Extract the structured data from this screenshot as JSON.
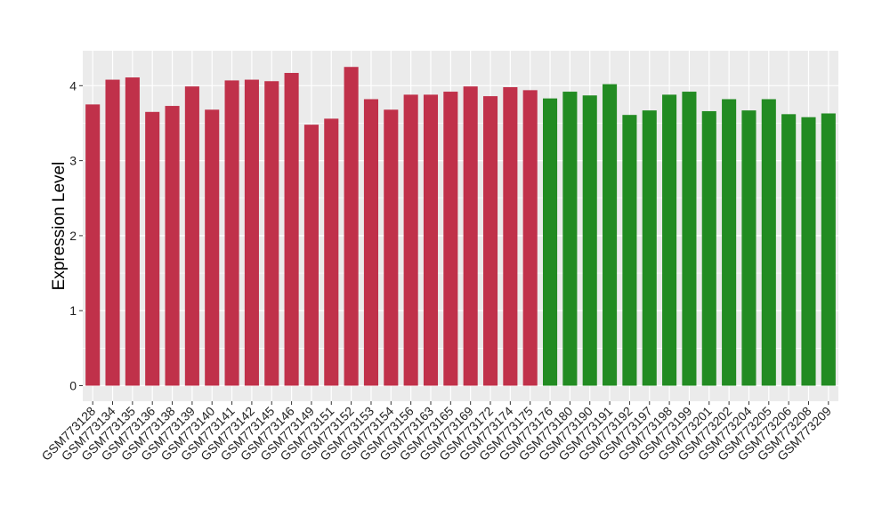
{
  "chart_data": {
    "type": "bar",
    "title": "",
    "xlabel": "",
    "ylabel": "Expression Level",
    "ylim": [
      -0.2,
      4.5
    ],
    "yticks": [
      0,
      1,
      2,
      3,
      4
    ],
    "grid": true,
    "legend": "none",
    "panel_color": "#ebebeb",
    "grid_color": "#ffffff",
    "categories": [
      "GSM773128",
      "GSM773134",
      "GSM773135",
      "GSM773136",
      "GSM773138",
      "GSM773139",
      "GSM773140",
      "GSM773141",
      "GSM773142",
      "GSM773145",
      "GSM773146",
      "GSM773149",
      "GSM773151",
      "GSM773152",
      "GSM773153",
      "GSM773154",
      "GSM773156",
      "GSM773163",
      "GSM773165",
      "GSM773169",
      "GSM773172",
      "GSM773174",
      "GSM773175",
      "GSM773176",
      "GSM773180",
      "GSM773190",
      "GSM773191",
      "GSM773192",
      "GSM773197",
      "GSM773198",
      "GSM773199",
      "GSM773201",
      "GSM773202",
      "GSM773204",
      "GSM773205",
      "GSM773206",
      "GSM773208",
      "GSM773209"
    ],
    "values": [
      3.75,
      4.08,
      4.11,
      3.65,
      3.73,
      3.99,
      3.68,
      4.07,
      4.08,
      4.06,
      4.17,
      3.48,
      3.56,
      4.25,
      3.82,
      3.68,
      3.88,
      3.88,
      3.92,
      3.99,
      3.86,
      3.98,
      3.94,
      3.83,
      3.92,
      3.87,
      4.02,
      3.61,
      3.67,
      3.88,
      3.92,
      3.66,
      3.82,
      3.67,
      3.82,
      3.62,
      3.58,
      3.63
    ],
    "bar_colors": [
      "#c0314a",
      "#c0314a",
      "#c0314a",
      "#c0314a",
      "#c0314a",
      "#c0314a",
      "#c0314a",
      "#c0314a",
      "#c0314a",
      "#c0314a",
      "#c0314a",
      "#c0314a",
      "#c0314a",
      "#c0314a",
      "#c0314a",
      "#c0314a",
      "#c0314a",
      "#c0314a",
      "#c0314a",
      "#c0314a",
      "#c0314a",
      "#c0314a",
      "#c0314a",
      "#228b22",
      "#228b22",
      "#228b22",
      "#228b22",
      "#228b22",
      "#228b22",
      "#228b22",
      "#228b22",
      "#228b22",
      "#228b22",
      "#228b22",
      "#228b22",
      "#228b22",
      "#228b22",
      "#228b22"
    ]
  }
}
